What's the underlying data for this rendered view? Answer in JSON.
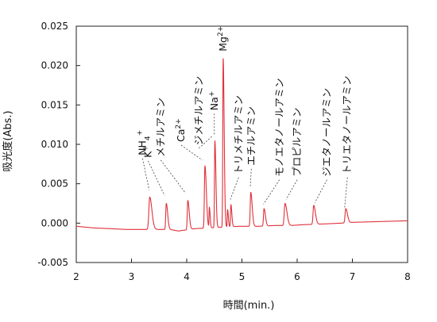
{
  "chart_data": {
    "type": "line",
    "xlabel": "時間(min.)",
    "ylabel": "吸光度(Abs.)",
    "xlim": [
      2,
      8
    ],
    "ylim": [
      -0.005,
      0.025
    ],
    "x_ticks": [
      "2",
      "3",
      "4",
      "5",
      "6",
      "7",
      "8"
    ],
    "y_ticks": [
      "-0.005",
      "0.000",
      "0.005",
      "0.010",
      "0.015",
      "0.020",
      "0.025"
    ],
    "grid": false,
    "line_color": "#e0303a",
    "baseline": [
      [
        2.0,
        -0.0004
      ],
      [
        2.3,
        -0.0006
      ],
      [
        2.6,
        -0.0007
      ],
      [
        2.9,
        -0.0008
      ],
      [
        3.1,
        -0.0008
      ],
      [
        3.7,
        -0.0008
      ],
      [
        3.85,
        -0.001
      ],
      [
        4.15,
        -0.0007
      ],
      [
        4.7,
        -0.0005
      ],
      [
        4.95,
        -0.0004
      ],
      [
        5.3,
        -0.0004
      ],
      [
        5.6,
        -0.0003
      ],
      [
        5.9,
        -0.0003
      ],
      [
        6.1,
        -0.0002
      ],
      [
        6.5,
        -0.0001
      ],
      [
        6.8,
        0.0
      ],
      [
        7.0,
        0.0001
      ],
      [
        7.5,
        0.0002
      ],
      [
        8.0,
        0.0003
      ]
    ],
    "peaks": [
      {
        "label": "NH4+",
        "t": 3.33,
        "h": 0.0041,
        "w": 0.028
      },
      {
        "label": "K+",
        "t": 3.63,
        "h": 0.0033,
        "w": 0.018
      },
      {
        "label": "メチルアミン",
        "t": 4.02,
        "h": 0.0037,
        "w": 0.018
      },
      {
        "label": "Ca2+",
        "t": 4.33,
        "h": 0.0079,
        "w": 0.018
      },
      {
        "label": "",
        "t": 4.41,
        "h": 0.0026,
        "w": 0.01
      },
      {
        "label": "ジメチルアミン",
        "t": 4.51,
        "h": 0.011,
        "w": 0.013
      },
      {
        "label": "Na+",
        "t": 4.66,
        "h": 0.0214,
        "w": 0.013
      },
      {
        "label": "",
        "t": 4.74,
        "h": 0.0022,
        "w": 0.01
      },
      {
        "label": "Mg2+",
        "t": 4.8,
        "h": 0.0028,
        "w": 0.012
      },
      {
        "label": "トリメチルアミン",
        "t": 5.16,
        "h": 0.0043,
        "w": 0.018
      },
      {
        "label": "エチルアミン",
        "t": 5.4,
        "h": 0.0022,
        "w": 0.018
      },
      {
        "label": "モノエタノールアミン",
        "t": 5.78,
        "h": 0.0028,
        "w": 0.025
      },
      {
        "label": "プロピルアミン",
        "t": 6.3,
        "h": 0.0024,
        "w": 0.022
      },
      {
        "label": "ジエタノールアミン",
        "t": 6.88,
        "h": 0.0018,
        "w": 0.022
      }
    ],
    "peak_labels": [
      {
        "label": "NH4+",
        "text": "NH",
        "sub": "4",
        "sup": "+",
        "orientation": "rotated",
        "line_from_t": 3.2,
        "line_from_y": 0.0082,
        "line_to_t": 3.32,
        "line_to_y": 0.0042
      },
      {
        "label": "K+",
        "text": "K",
        "sup": "+",
        "orientation": "rotated",
        "line_from_t": 3.3,
        "line_from_y": 0.0079,
        "line_to_t": 3.6,
        "line_to_y": 0.0035
      },
      {
        "label": "メチルアミン",
        "text": "メチルアミン",
        "orientation": "vertical",
        "line_from_t": 3.53,
        "line_from_y": 0.008,
        "line_to_t": 3.98,
        "line_to_y": 0.0038
      },
      {
        "label": "Ca2+",
        "text": "Ca",
        "sup": "2+",
        "orientation": "rotated",
        "line_from_t": 3.9,
        "line_from_y": 0.0099,
        "line_to_t": 4.28,
        "line_to_y": 0.008
      },
      {
        "label": "ジメチルアミン",
        "text": "ジメチルアミン",
        "orientation": "vertical",
        "line_from_t": 4.22,
        "line_from_y": 0.0095,
        "line_to_t": 4.47,
        "line_to_y": 0.0111
      },
      {
        "label": "Na+",
        "text": "Na",
        "sup": "+",
        "orientation": "rotated",
        "line_from_t": 4.5,
        "line_from_y": 0.0139,
        "line_to_t": 4.5,
        "line_to_y": 0.0112
      },
      {
        "label": "Mg2+",
        "text": "Mg",
        "sup": "2+",
        "orientation": "rotated",
        "line_from_t": 4.66,
        "line_from_y": 0.0214,
        "line_to_t": 4.66,
        "line_to_y": 0.0214
      },
      {
        "label": "トリメチルアミン",
        "text": "トリメチルアミン",
        "orientation": "vertical",
        "line_from_t": 4.94,
        "line_from_y": 0.0058,
        "line_to_t": 4.79,
        "line_to_y": 0.003
      },
      {
        "label": "エチルアミン",
        "text": "エチルアミン",
        "orientation": "vertical",
        "line_from_t": 5.17,
        "line_from_y": 0.0069,
        "line_to_t": 5.15,
        "line_to_y": 0.0045
      },
      {
        "label": "モノエタノールアミン",
        "text": "モノエタノールアミン",
        "orientation": "vertical",
        "line_from_t": 5.68,
        "line_from_y": 0.0055,
        "line_to_t": 5.39,
        "line_to_y": 0.0024
      },
      {
        "label": "プロピルアミン",
        "text": "プロピルアミン",
        "orientation": "vertical",
        "line_from_t": 6.0,
        "line_from_y": 0.0055,
        "line_to_t": 5.8,
        "line_to_y": 0.003
      },
      {
        "label": "ジエタノールアミン",
        "text": "ジエタノールアミン",
        "orientation": "vertical",
        "line_from_t": 6.54,
        "line_from_y": 0.0055,
        "line_to_t": 6.32,
        "line_to_y": 0.0026
      },
      {
        "label": "トリエタノールアミン",
        "text": "トリエタノールアミン",
        "orientation": "vertical",
        "line_from_t": 6.91,
        "line_from_y": 0.0058,
        "line_to_t": 6.86,
        "line_to_y": 0.002
      }
    ]
  }
}
